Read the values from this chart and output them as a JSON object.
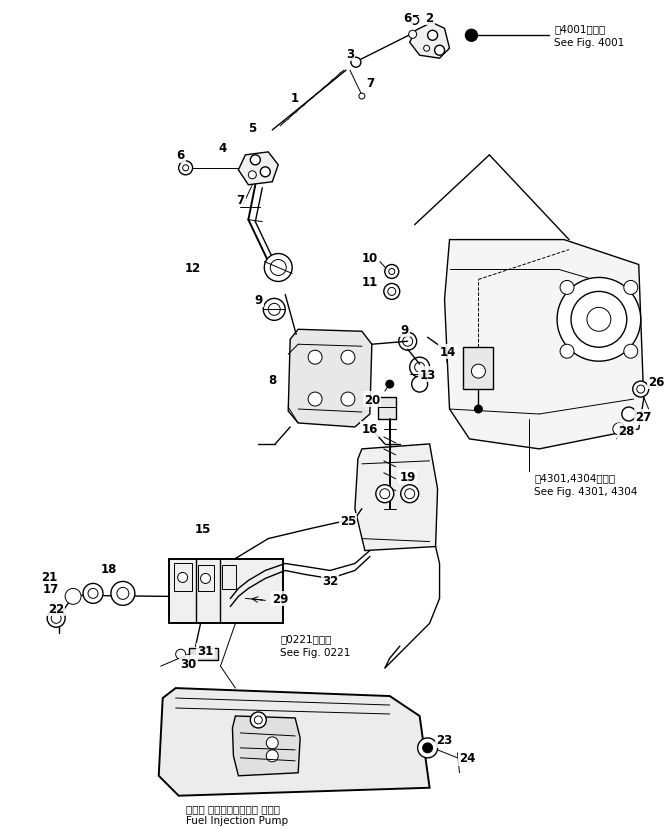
{
  "bg_color": "#ffffff",
  "line_color": "#000000",
  "fig_width": 6.71,
  "fig_height": 8.29,
  "dpi": 100,
  "title_ja": "第4001図参照",
  "title_en": "See Fig. 4001",
  "ref4301_ja": "第4301,4304図参照",
  "ref4301_en": "See Fig. 4301, 4304",
  "ref0221_ja": "第0221図参照",
  "ref0221_en": "See Fig. 0221",
  "pump_ja": "フェル インジェクション ポンプ",
  "pump_en": "Fuel Injection Pump"
}
